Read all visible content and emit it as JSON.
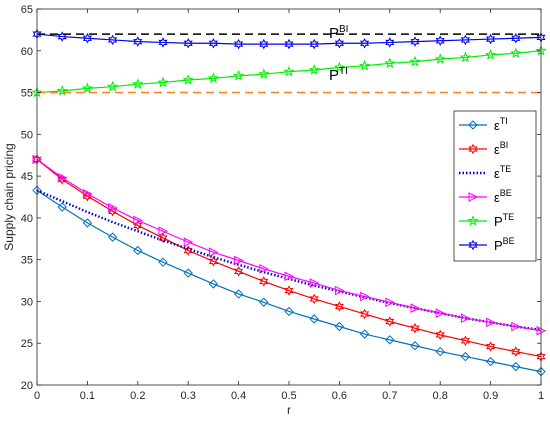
{
  "chart_data": {
    "type": "line",
    "title": "",
    "xlabel": "r",
    "ylabel": "Supply chain pricing",
    "xlim": [
      0,
      1
    ],
    "ylim": [
      20,
      65
    ],
    "grid": false,
    "legend_position": "right",
    "x_ticks": [
      "0",
      "0.1",
      "0.2",
      "0.3",
      "0.4",
      "0.5",
      "0.6",
      "0.7",
      "0.8",
      "0.9",
      "1"
    ],
    "y_ticks": [
      "20",
      "25",
      "30",
      "35",
      "40",
      "45",
      "50",
      "55",
      "60",
      "65"
    ],
    "x": [
      0,
      0.05,
      0.1,
      0.15,
      0.2,
      0.25,
      0.3,
      0.35,
      0.4,
      0.45,
      0.5,
      0.55,
      0.6,
      0.65,
      0.7,
      0.75,
      0.8,
      0.85,
      0.9,
      0.95,
      1.0
    ],
    "reference_lines": [
      {
        "base": "P",
        "sup": "BI",
        "y": 62,
        "color": "#000000"
      },
      {
        "base": "P",
        "sup": "TI",
        "y": 55,
        "color": "#ff7f27"
      }
    ],
    "series": [
      {
        "base": "ε",
        "sup": "TI",
        "color": "#0072bd",
        "marker": "diamond",
        "dash": "solid",
        "values": [
          43.3,
          41.3,
          39.4,
          37.7,
          36.1,
          34.7,
          33.4,
          32.1,
          30.9,
          29.9,
          28.8,
          27.9,
          27.0,
          26.1,
          25.4,
          24.7,
          24.0,
          23.4,
          22.8,
          22.2,
          21.6
        ]
      },
      {
        "base": "ε",
        "sup": "BI",
        "color": "#ff0000",
        "marker": "hexagram",
        "dash": "solid",
        "values": [
          47.0,
          44.6,
          42.6,
          40.8,
          39.1,
          37.6,
          36.1,
          34.8,
          33.6,
          32.4,
          31.3,
          30.3,
          29.4,
          28.5,
          27.6,
          26.8,
          26.0,
          25.3,
          24.6,
          24.0,
          23.4
        ]
      },
      {
        "base": "ε",
        "sup": "TE",
        "color": "#0000cc",
        "marker": "none",
        "dash": "dotted",
        "values": [
          43.3,
          42.0,
          40.7,
          39.5,
          38.4,
          37.3,
          36.3,
          35.3,
          34.4,
          33.5,
          32.7,
          31.9,
          31.2,
          30.5,
          29.8,
          29.2,
          28.6,
          28.0,
          27.5,
          27.0,
          26.6
        ]
      },
      {
        "base": "ε",
        "sup": "BE",
        "color": "#ff00ff",
        "marker": "triangle-right",
        "dash": "solid",
        "values": [
          47.0,
          44.8,
          42.9,
          41.2,
          39.7,
          38.4,
          37.1,
          35.9,
          34.9,
          33.9,
          33.0,
          32.2,
          31.3,
          30.6,
          29.9,
          29.2,
          28.6,
          28.0,
          27.5,
          27.0,
          26.5
        ]
      },
      {
        "base": "P",
        "sup": "TE",
        "color": "#00ee00",
        "marker": "star",
        "dash": "solid",
        "values": [
          55.0,
          55.2,
          55.5,
          55.7,
          56.0,
          56.2,
          56.5,
          56.7,
          57.0,
          57.2,
          57.5,
          57.7,
          58.0,
          58.2,
          58.5,
          58.7,
          59.0,
          59.2,
          59.5,
          59.7,
          60.0
        ]
      },
      {
        "base": "P",
        "sup": "BE",
        "color": "#0000ee",
        "marker": "hexagram",
        "dash": "solid",
        "values": [
          62.0,
          61.7,
          61.5,
          61.3,
          61.1,
          61.0,
          60.9,
          60.9,
          60.8,
          60.8,
          60.8,
          60.8,
          60.9,
          60.9,
          61.0,
          61.1,
          61.2,
          61.3,
          61.4,
          61.5,
          61.6
        ]
      }
    ]
  }
}
